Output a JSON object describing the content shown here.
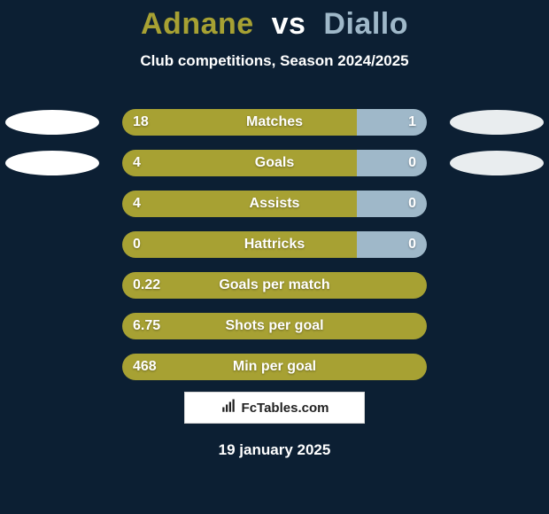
{
  "background_color": "#0c1f33",
  "title": {
    "player1": "Adnane",
    "vs": "vs",
    "player2": "Diallo",
    "p1_color": "#a7a133",
    "vs_color": "#ffffff",
    "p2_color": "#9fb8c9"
  },
  "subtitle": "Club competitions, Season 2024/2025",
  "bar": {
    "total_width": 344,
    "height": 30,
    "left_color": "#a7a133",
    "right_color": "#9fb8c9",
    "text_color": "#ffffff"
  },
  "ellipse": {
    "left_color": "#ffffff",
    "right_color": "#e9edef"
  },
  "rows": [
    {
      "label": "Matches",
      "left_val": "18",
      "right_val": "1",
      "left_pct": 0.77,
      "show_ellipses": true
    },
    {
      "label": "Goals",
      "left_val": "4",
      "right_val": "0",
      "left_pct": 0.77,
      "show_ellipses": true
    },
    {
      "label": "Assists",
      "left_val": "4",
      "right_val": "0",
      "left_pct": 0.77,
      "show_ellipses": false
    },
    {
      "label": "Hattricks",
      "left_val": "0",
      "right_val": "0",
      "left_pct": 0.77,
      "show_ellipses": false
    },
    {
      "label": "Goals per match",
      "left_val": "0.22",
      "right_val": "",
      "left_pct": 1.0,
      "show_ellipses": false
    },
    {
      "label": "Shots per goal",
      "left_val": "6.75",
      "right_val": "",
      "left_pct": 1.0,
      "show_ellipses": false
    },
    {
      "label": "Min per goal",
      "left_val": "468",
      "right_val": "",
      "left_pct": 1.0,
      "show_ellipses": false
    }
  ],
  "footer_brand": "FcTables.com",
  "date_text": "19 january 2025"
}
